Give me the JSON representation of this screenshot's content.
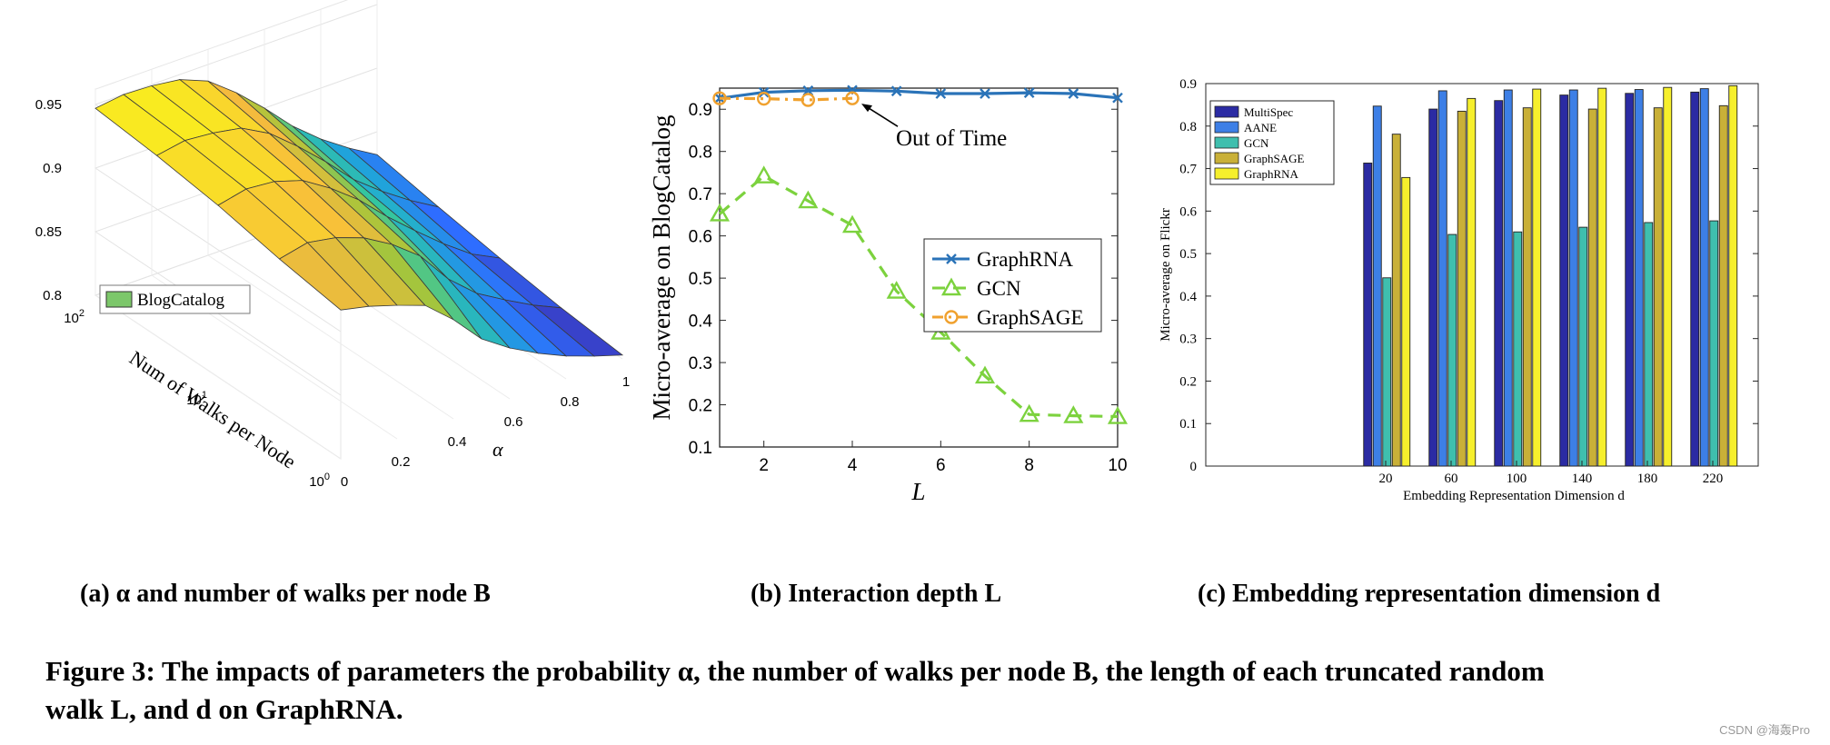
{
  "figure": {
    "caption_line1": "Figure 3: The impacts of parameters the probability α, the number of walks per node B, the length of each truncated random",
    "caption_line2": "walk L, and d on GraphRNA.",
    "watermark": "CSDN @海轰Pro",
    "panel_a_label": "(a) α and number of walks per node B",
    "panel_b_label": "(b) Interaction depth L",
    "panel_c_label": "(c) Embedding representation dimension d"
  },
  "chart_data": [
    {
      "type": "surface3d",
      "title": "",
      "xlabel": "α",
      "ylabel": "Num of Walks per Node",
      "zlabel": "",
      "x_ticks": [
        "0",
        "0.2",
        "0.4",
        "0.6",
        "0.8",
        "1"
      ],
      "y_ticks": [
        "10^0",
        "10^1",
        "10^2"
      ],
      "z_ticks": [
        "0.8",
        "0.85",
        "0.9",
        "0.95"
      ],
      "zlim": [
        0.8,
        0.95
      ],
      "legend": [
        "BlogCatalog"
      ],
      "legend_position": "left",
      "colormap": [
        "#3e26a8",
        "#2e6dff",
        "#1fa8d8",
        "#35c79d",
        "#a6c53b",
        "#f8ba3d",
        "#f9f11c"
      ],
      "alpha_values": [
        0,
        0.1,
        0.2,
        0.3,
        0.4,
        0.5,
        0.6,
        0.7,
        0.8,
        0.9,
        1.0
      ],
      "walk_rows": [
        "10^0",
        "10^0.5",
        "10^1",
        "10^1.5",
        "10^2"
      ],
      "z": [
        [
          0.917,
          0.912,
          0.905,
          0.897,
          0.878,
          0.855,
          0.84,
          0.828,
          0.818,
          0.81,
          0.803
        ],
        [
          0.925,
          0.93,
          0.926,
          0.918,
          0.905,
          0.888,
          0.862,
          0.843,
          0.83,
          0.818,
          0.808
        ],
        [
          0.935,
          0.94,
          0.938,
          0.931,
          0.917,
          0.9,
          0.879,
          0.86,
          0.842,
          0.826,
          0.815
        ],
        [
          0.942,
          0.946,
          0.944,
          0.94,
          0.928,
          0.91,
          0.89,
          0.868,
          0.851,
          0.836,
          0.823
        ],
        [
          0.947,
          0.95,
          0.949,
          0.946,
          0.937,
          0.92,
          0.9,
          0.878,
          0.86,
          0.845,
          0.832
        ]
      ]
    },
    {
      "type": "line",
      "title": "",
      "xlabel": "L",
      "ylabel": "Micro-average on BlogCatalog",
      "xlim": [
        1,
        10
      ],
      "ylim": [
        0.1,
        0.95
      ],
      "x_ticks": [
        "2",
        "4",
        "6",
        "8",
        "10"
      ],
      "y_ticks": [
        "0.1",
        "0.2",
        "0.3",
        "0.4",
        "0.5",
        "0.6",
        "0.7",
        "0.8",
        "0.9"
      ],
      "legend_position": "center-right",
      "annotation": "Out of Time",
      "series": [
        {
          "name": "GraphRNA",
          "color": "#2a73b8",
          "marker": "x",
          "dash": "solid",
          "x": [
            1,
            2,
            3,
            4,
            5,
            6,
            7,
            8,
            9,
            10
          ],
          "y": [
            0.926,
            0.94,
            0.944,
            0.945,
            0.943,
            0.937,
            0.937,
            0.939,
            0.937,
            0.927
          ]
        },
        {
          "name": "GCN",
          "color": "#7cd23e",
          "marker": "triangle",
          "dash": "dashed",
          "x": [
            1,
            2,
            3,
            4,
            5,
            6,
            7,
            8,
            9,
            10
          ],
          "y": [
            0.652,
            0.742,
            0.683,
            0.625,
            0.469,
            0.372,
            0.268,
            0.177,
            0.174,
            0.172
          ]
        },
        {
          "name": "GraphSAGE",
          "color": "#f0a12e",
          "marker": "circle",
          "dash": "dashdot",
          "x": [
            1,
            2,
            3,
            4
          ],
          "y": [
            0.926,
            0.925,
            0.922,
            0.926
          ]
        }
      ]
    },
    {
      "type": "bar",
      "title": "",
      "xlabel": "Embedding Representation Dimension d",
      "ylabel": "Micro-average on Flickr",
      "ylim": [
        0,
        0.9
      ],
      "y_ticks": [
        "0",
        "0.1",
        "0.2",
        "0.3",
        "0.4",
        "0.5",
        "0.6",
        "0.7",
        "0.8",
        "0.9"
      ],
      "categories": [
        "20",
        "60",
        "100",
        "140",
        "180",
        "220"
      ],
      "legend_position": "top-left",
      "series": [
        {
          "name": "MultiSpec",
          "color": "#2b2ba3",
          "values": [
            0.713,
            0.84,
            0.86,
            0.873,
            0.877,
            0.88
          ]
        },
        {
          "name": "AANE",
          "color": "#3d7fe6",
          "values": [
            0.847,
            0.883,
            0.885,
            0.885,
            0.886,
            0.888
          ]
        },
        {
          "name": "GCN",
          "color": "#3fbfae",
          "values": [
            0.443,
            0.545,
            0.551,
            0.562,
            0.573,
            0.577
          ]
        },
        {
          "name": "GraphSAGE",
          "color": "#c9b038",
          "values": [
            0.781,
            0.835,
            0.843,
            0.84,
            0.843,
            0.848
          ]
        },
        {
          "name": "GraphRNA",
          "color": "#f6ef2c",
          "values": [
            0.679,
            0.865,
            0.887,
            0.889,
            0.891,
            0.895
          ]
        }
      ]
    }
  ]
}
